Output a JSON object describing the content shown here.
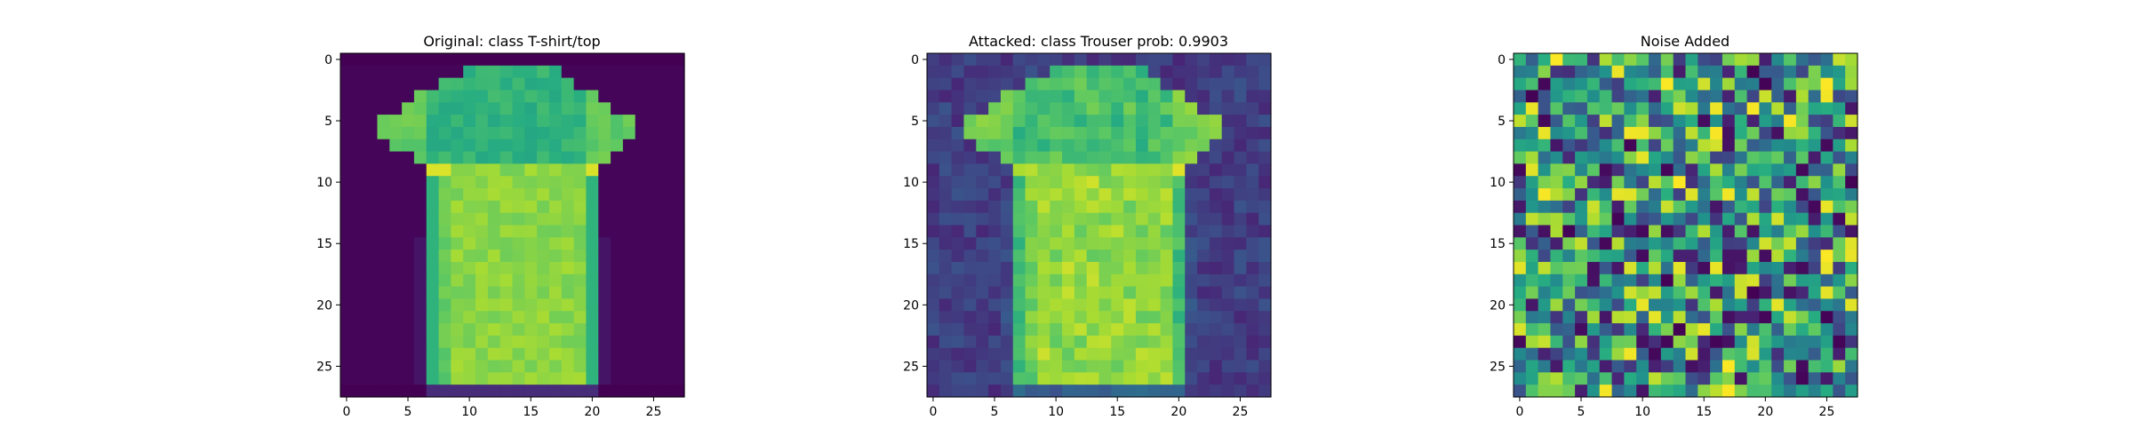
{
  "colormap": "viridis",
  "chart_data": [
    {
      "type": "heatmap",
      "title": "Original: class T-shirt/top",
      "size": [
        28,
        28
      ],
      "xticks": [
        0,
        5,
        10,
        15,
        20,
        25
      ],
      "yticks": [
        0,
        5,
        10,
        15,
        20,
        25
      ],
      "extent": [
        -0.5,
        27.5
      ],
      "values_description_shape": "T-shirt silhouette (bright) on dark background"
    },
    {
      "type": "heatmap",
      "title": "Attacked: class Trouser prob: 0.9903",
      "size": [
        28,
        28
      ],
      "xticks": [
        0,
        5,
        10,
        15,
        20,
        25
      ],
      "yticks": [
        0,
        5,
        10,
        15,
        20,
        25
      ],
      "extent": [
        -0.5,
        27.5
      ]
    },
    {
      "type": "heatmap",
      "title": "Noise Added",
      "size": [
        28,
        28
      ],
      "xticks": [
        0,
        5,
        10,
        15,
        20,
        25
      ],
      "yticks": [
        0,
        5,
        10,
        15,
        20,
        25
      ],
      "extent": [
        -0.5,
        27.5
      ]
    }
  ]
}
